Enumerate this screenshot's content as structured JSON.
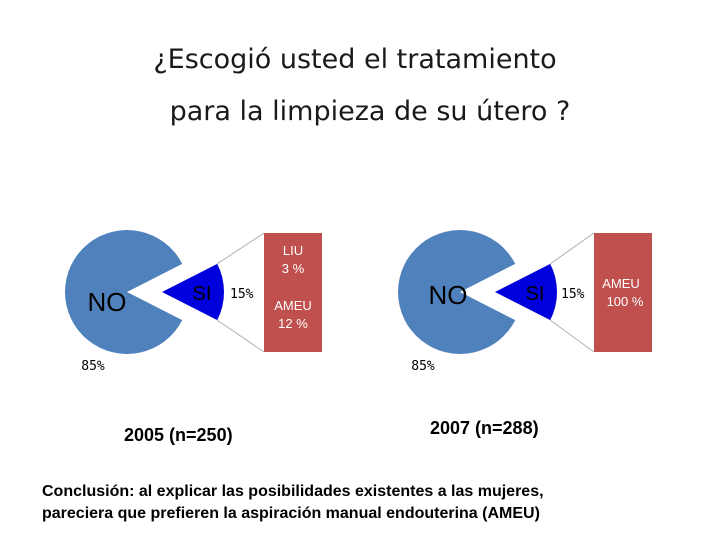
{
  "title": {
    "line1": "¿Escogió usted el tratamiento",
    "line2": "para la limpieza de su útero ?"
  },
  "colors": {
    "no": "#4f81bd",
    "si": "#0000dd",
    "bar": "#c0504d",
    "text_light": "#ffffff"
  },
  "chart_data": [
    {
      "type": "pie",
      "caption": "2005 (n=250)",
      "slices": [
        {
          "name": "NO",
          "value": 85,
          "label": "85%"
        },
        {
          "name": "SI",
          "value": 15,
          "label": "15%"
        }
      ],
      "breakdown": {
        "of": "SI",
        "type": "stacked-bar",
        "segments": [
          {
            "name": "LIU",
            "value": 3,
            "label": "3 %"
          },
          {
            "name": "AMEU",
            "value": 12,
            "label": "12 %"
          }
        ]
      }
    },
    {
      "type": "pie",
      "caption": "2007 (n=288)",
      "slices": [
        {
          "name": "NO",
          "value": 85,
          "label": "85%"
        },
        {
          "name": "SI",
          "value": 15,
          "label": "15%"
        }
      ],
      "breakdown": {
        "of": "SI",
        "type": "stacked-bar",
        "segments": [
          {
            "name": "AMEU",
            "value": 100,
            "label": "100 %"
          }
        ]
      }
    }
  ],
  "conclusion": {
    "line1": "Conclusión: al explicar las posibilidades existentes a las mujeres,",
    "line2": "pareciera que prefieren la aspiración manual endouterina (AMEU)"
  }
}
